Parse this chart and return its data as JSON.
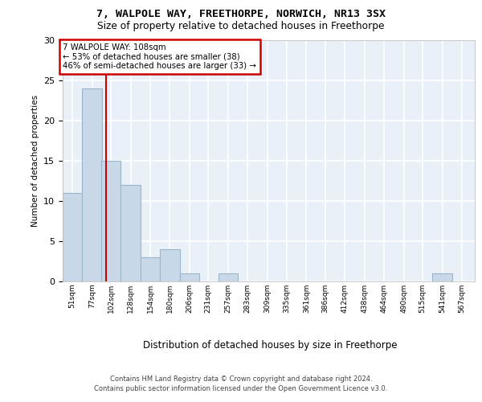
{
  "title1": "7, WALPOLE WAY, FREETHORPE, NORWICH, NR13 3SX",
  "title2": "Size of property relative to detached houses in Freethorpe",
  "xlabel": "Distribution of detached houses by size in Freethorpe",
  "ylabel": "Number of detached properties",
  "bin_labels": [
    "51sqm",
    "77sqm",
    "102sqm",
    "128sqm",
    "154sqm",
    "180sqm",
    "206sqm",
    "231sqm",
    "257sqm",
    "283sqm",
    "309sqm",
    "335sqm",
    "361sqm",
    "386sqm",
    "412sqm",
    "438sqm",
    "464sqm",
    "490sqm",
    "515sqm",
    "541sqm",
    "567sqm"
  ],
  "bin_edges": [
    51,
    77,
    102,
    128,
    154,
    180,
    206,
    231,
    257,
    283,
    309,
    335,
    361,
    386,
    412,
    438,
    464,
    490,
    515,
    541,
    567
  ],
  "bar_values": [
    11,
    24,
    15,
    12,
    3,
    4,
    1,
    0,
    1,
    0,
    0,
    0,
    0,
    0,
    0,
    0,
    0,
    0,
    0,
    1,
    0
  ],
  "bar_color": "#c8d8e8",
  "bar_edgecolor": "#9ab4cc",
  "vline_x": 108,
  "vline_color": "#cc0000",
  "ylim": [
    0,
    30
  ],
  "yticks": [
    0,
    5,
    10,
    15,
    20,
    25,
    30
  ],
  "annotation_text": "7 WALPOLE WAY: 108sqm\n← 53% of detached houses are smaller (38)\n46% of semi-detached houses are larger (33) →",
  "annotation_box_color": "#ffffff",
  "annotation_box_edgecolor": "#cc0000",
  "footer_text": "Contains HM Land Registry data © Crown copyright and database right 2024.\nContains public sector information licensed under the Open Government Licence v3.0.",
  "bg_color": "#eaf0f8",
  "grid_color": "#ffffff",
  "bin_width": 26
}
